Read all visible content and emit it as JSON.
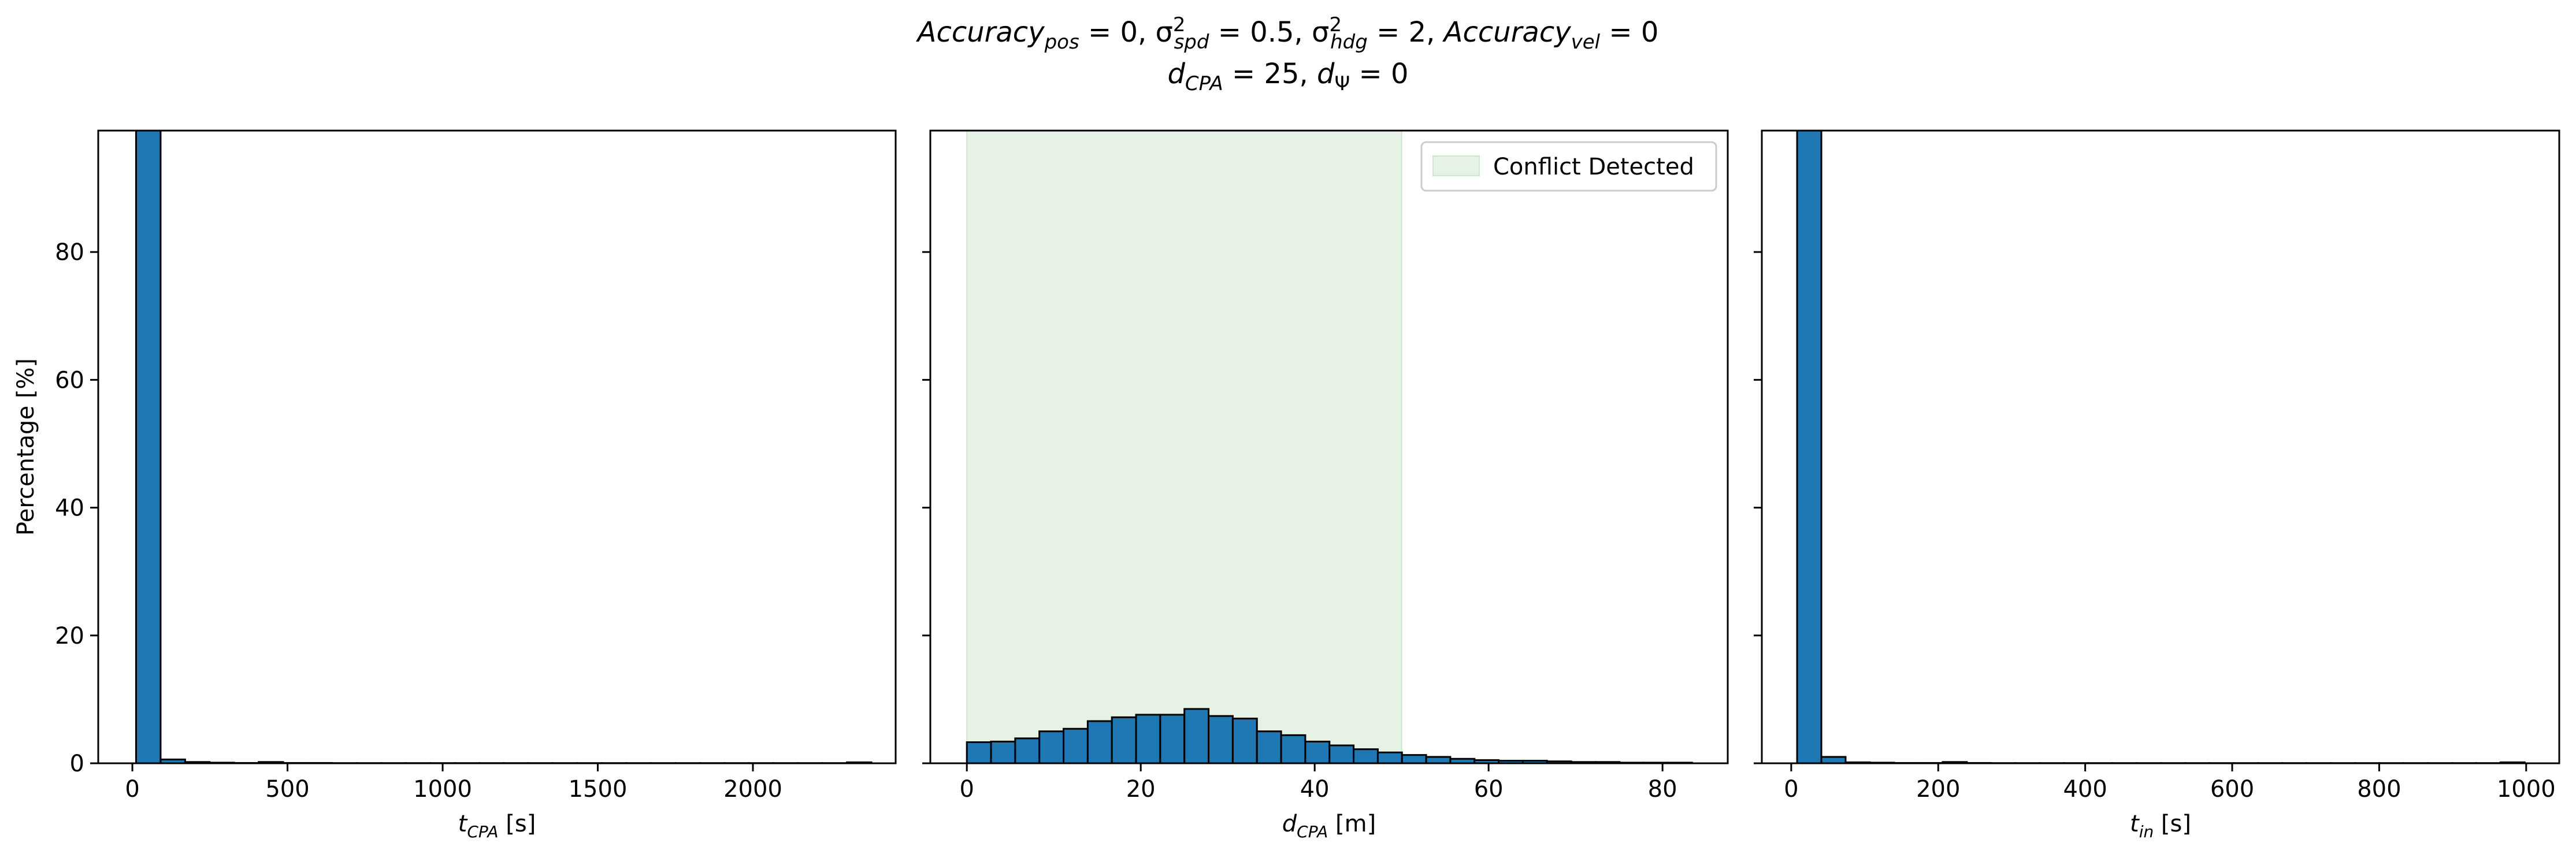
{
  "title": {
    "line1_parts": [
      {
        "t": "Accuracy",
        "i": true
      },
      {
        "t": "pos",
        "sub": true,
        "i": true
      },
      {
        "t": " = 0, "
      },
      {
        "t": "σ"
      },
      {
        "t": "spd",
        "sub": true,
        "sup": "2",
        "i": true
      },
      {
        "t": " = 0.5, "
      },
      {
        "t": "σ"
      },
      {
        "t": "hdg",
        "sub": true,
        "sup": "2",
        "i": true
      },
      {
        "t": " = 2, "
      },
      {
        "t": "Accuracy",
        "i": true
      },
      {
        "t": "vel",
        "sub": true,
        "i": true
      },
      {
        "t": " = 0"
      }
    ],
    "line2_parts": [
      {
        "t": "d",
        "i": true
      },
      {
        "t": "CPA",
        "sub": true,
        "i": true
      },
      {
        "t": " = 25, "
      },
      {
        "t": "d",
        "i": true
      },
      {
        "t": "Ψ",
        "sub": true
      },
      {
        "t": " = 0"
      }
    ]
  },
  "colors": {
    "bar": "#1f77b4",
    "bar_edge": "#000000",
    "conflict_fill": "#e5f2e5",
    "conflict_edge": "#cfe6cf"
  },
  "chart_data": [
    {
      "type": "bar",
      "xlabel_parts": [
        {
          "t": "t",
          "i": true
        },
        {
          "t": "CPA",
          "sub": true,
          "i": true
        },
        {
          "t": " [s]"
        }
      ],
      "ylabel": "Percentage [%]",
      "xlim": [
        -110,
        2460
      ],
      "ylim": [
        0,
        99
      ],
      "xticks": [
        0,
        500,
        1000,
        1500,
        2000
      ],
      "yticks": [
        0,
        20,
        40,
        60,
        80
      ],
      "bins": {
        "start": 12,
        "width": 79
      },
      "values": [
        100,
        0.6,
        0.2,
        0.1,
        0.05,
        0.2,
        0.05,
        0.05,
        0.03,
        0.03,
        0.03,
        0.03,
        0.03,
        0.03,
        0.03,
        0.03,
        0.03,
        0.03,
        0.03,
        0.03,
        0.03,
        0.03,
        0.03,
        0.03,
        0.03,
        0.03,
        0.03,
        0.03,
        0.03,
        0.15
      ],
      "grid": false
    },
    {
      "type": "bar",
      "xlabel_parts": [
        {
          "t": "d",
          "i": true
        },
        {
          "t": "CPA",
          "sub": true,
          "i": true
        },
        {
          "t": " [m]"
        }
      ],
      "xlim": [
        -4.2,
        87.5
      ],
      "ylim": [
        0,
        99
      ],
      "xticks": [
        0,
        20,
        40,
        60,
        80
      ],
      "yticks": [
        0,
        20,
        40,
        60,
        80
      ],
      "bins": {
        "start": 0,
        "width": 2.78
      },
      "values": [
        3.3,
        3.4,
        3.9,
        5.0,
        5.4,
        6.6,
        7.2,
        7.6,
        7.6,
        8.5,
        7.4,
        7.0,
        5.0,
        4.4,
        3.4,
        2.8,
        2.2,
        1.7,
        1.3,
        1.0,
        0.7,
        0.5,
        0.4,
        0.4,
        0.3,
        0.2,
        0.2,
        0.1,
        0.1,
        0.1
      ],
      "conflict_region": [
        0,
        50
      ],
      "legend": {
        "label": "Conflict Detected",
        "loc": "upper right"
      },
      "grid": false
    },
    {
      "type": "bar",
      "xlabel_parts": [
        {
          "t": "t",
          "i": true
        },
        {
          "t": "in",
          "sub": true,
          "i": true
        },
        {
          "t": " [s]"
        }
      ],
      "xlim": [
        -40,
        1045
      ],
      "ylim": [
        0,
        99
      ],
      "xticks": [
        0,
        200,
        400,
        600,
        800,
        1000
      ],
      "yticks": [
        0,
        20,
        40,
        60,
        80
      ],
      "bins": {
        "start": 8,
        "width": 33
      },
      "values": [
        100,
        1.0,
        0.15,
        0.1,
        0.05,
        0.05,
        0.2,
        0.05,
        0.03,
        0.03,
        0.03,
        0.03,
        0.03,
        0.03,
        0.03,
        0.03,
        0.03,
        0.03,
        0.03,
        0.03,
        0.03,
        0.03,
        0.03,
        0.03,
        0.03,
        0.03,
        0.03,
        0.03,
        0.03,
        0.15
      ],
      "grid": false
    }
  ]
}
